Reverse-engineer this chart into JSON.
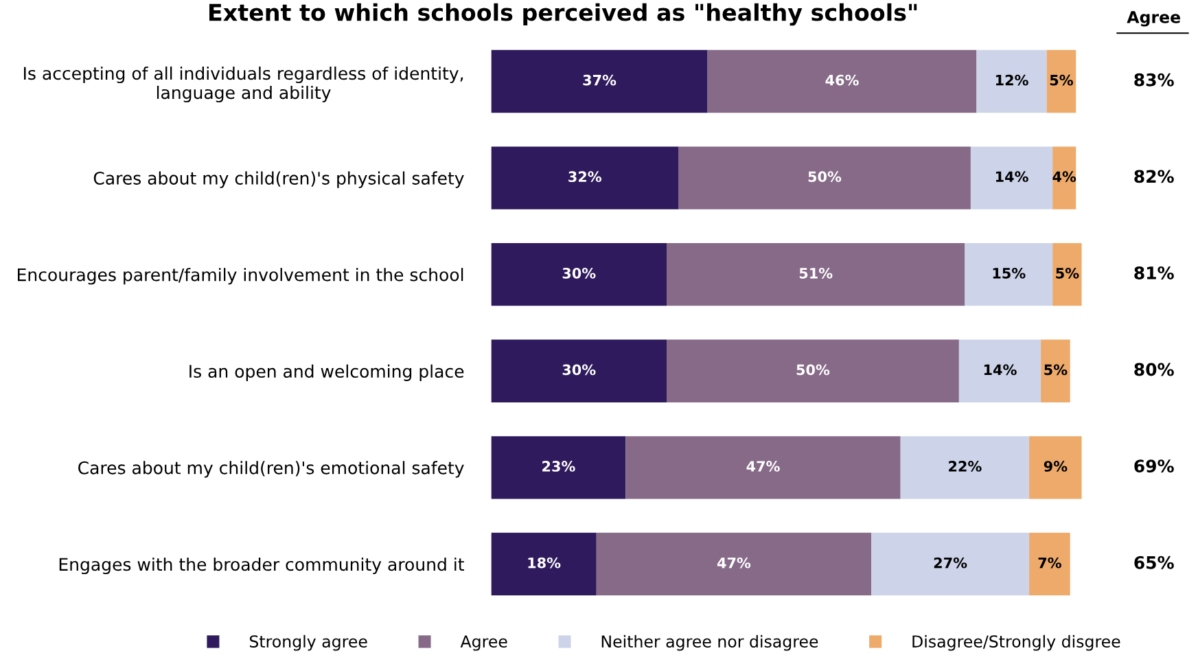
{
  "chart_data": {
    "type": "bar",
    "orientation": "horizontal",
    "stacked": true,
    "legend": "bottom",
    "grid": false,
    "tick_labels": "y",
    "title": "Extent to which schools perceived as \"healthy schools\"",
    "categories": [
      "Is accepting of all individuals regardless of identity,\nlanguage and ability",
      "Cares about my child(ren)'s physical safety",
      "Encourages parent/family involvement in the school",
      "Is an open and welcoming place",
      "Cares about my child(ren)'s emotional safety",
      "Engages with the broader community around it"
    ],
    "series": [
      {
        "name": "Strongly agree",
        "color": "#2e1a5c",
        "values": [
          37,
          32,
          30,
          30,
          23,
          18
        ],
        "value_labels": [
          "37%",
          "32%",
          "30%",
          "30%",
          "23%",
          "18%"
        ]
      },
      {
        "name": "Agree",
        "color": "#866a88",
        "values": [
          46,
          50,
          51,
          50,
          47,
          47
        ],
        "value_labels": [
          "46%",
          "50%",
          "51%",
          "50%",
          "47%",
          "47%"
        ]
      },
      {
        "name": "Neither agree nor disagree",
        "color": "#cdd4e9",
        "values": [
          12,
          14,
          15,
          14,
          22,
          27
        ],
        "value_labels": [
          "12%",
          "14%",
          "15%",
          "14%",
          "22%",
          "27%"
        ]
      },
      {
        "name": "Disagree/Strongly disgree",
        "color": "#eeaa6a",
        "values": [
          5,
          4,
          5,
          5,
          9,
          7
        ],
        "value_labels": [
          "5%",
          "4%",
          "5%",
          "5%",
          "9%",
          "7%"
        ]
      }
    ],
    "annotations": [
      "Agree",
      "83%",
      "82%",
      "81%",
      "80%",
      "69%",
      "65%"
    ]
  }
}
